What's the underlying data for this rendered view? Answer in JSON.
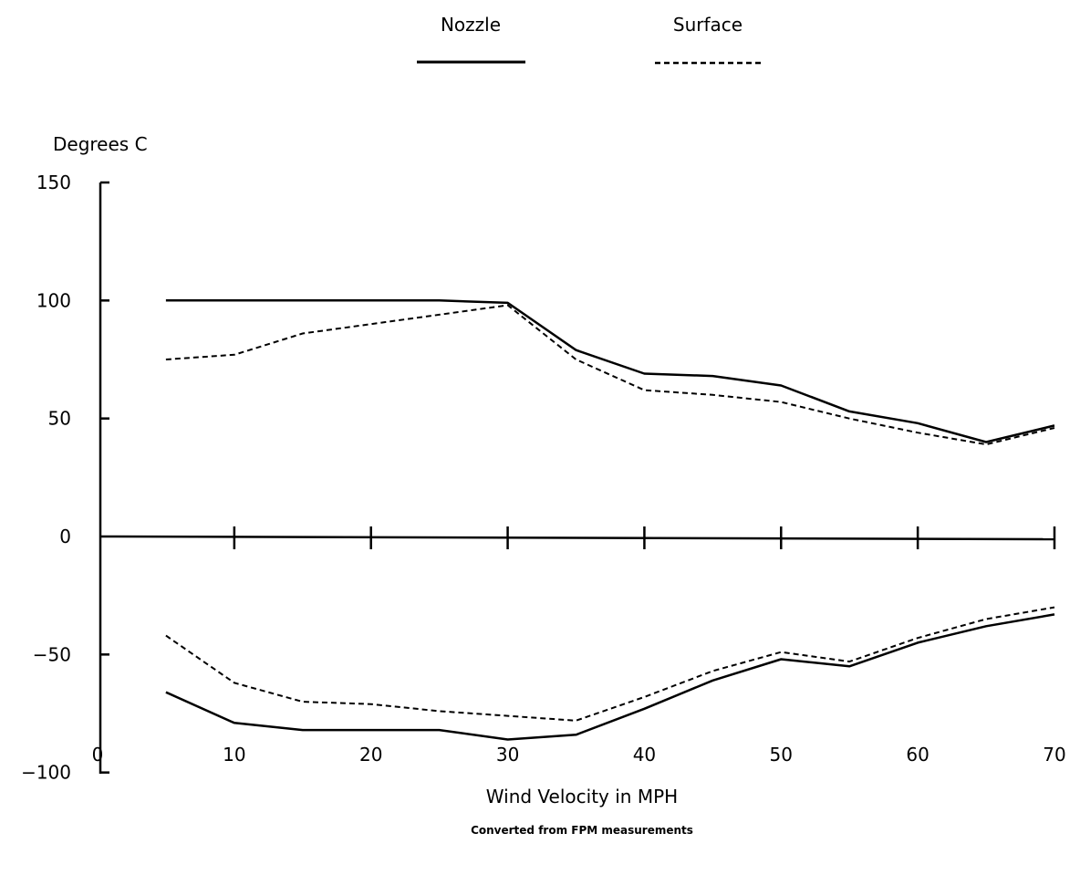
{
  "chart_data": {
    "type": "line",
    "legend": {
      "placement": "top-center",
      "entries": [
        {
          "name": "Nozzle",
          "style": "solid"
        },
        {
          "name": "Surface",
          "style": "dashed"
        }
      ]
    },
    "ylabel": "Degrees C",
    "xlabel": "Wind Velocity in MPH",
    "note": "Converted from FPM measurements",
    "xlim": [
      0,
      70
    ],
    "ylim": [
      -100,
      150
    ],
    "x_ticks": [
      0,
      10,
      20,
      30,
      40,
      50,
      60,
      70
    ],
    "y_ticks": [
      -100,
      -50,
      0,
      50,
      100,
      150
    ],
    "grid": false,
    "line_color": "#000000",
    "series": [
      {
        "name": "Nozzle",
        "group": "upper",
        "style": "solid",
        "x": [
          5,
          10,
          15,
          20,
          25,
          30,
          35,
          40,
          45,
          50,
          55,
          60,
          65,
          70
        ],
        "y": [
          100,
          100,
          100,
          100,
          100,
          99,
          79,
          69,
          68,
          64,
          53,
          48,
          40,
          47
        ]
      },
      {
        "name": "Surface",
        "group": "upper",
        "style": "dashed",
        "x": [
          5,
          10,
          15,
          20,
          25,
          30,
          35,
          40,
          45,
          50,
          55,
          60,
          65,
          70
        ],
        "y": [
          75,
          77,
          86,
          90,
          94,
          98,
          75,
          62,
          60,
          57,
          50,
          44,
          39,
          46
        ]
      },
      {
        "name": "Nozzle",
        "group": "lower",
        "style": "solid",
        "x": [
          5,
          10,
          15,
          20,
          25,
          30,
          35,
          40,
          45,
          50,
          55,
          60,
          65,
          70
        ],
        "y": [
          -66,
          -79,
          -82,
          -82,
          -82,
          -86,
          -84,
          -73,
          -61,
          -52,
          -55,
          -45,
          -38,
          -33
        ]
      },
      {
        "name": "Surface",
        "group": "lower",
        "style": "dashed",
        "x": [
          5,
          10,
          15,
          20,
          25,
          30,
          35,
          40,
          45,
          50,
          55,
          60,
          65,
          70
        ],
        "y": [
          -42,
          -62,
          -70,
          -71,
          -74,
          -76,
          -78,
          -68,
          -57,
          -49,
          -53,
          -43,
          -35,
          -30
        ]
      }
    ]
  }
}
